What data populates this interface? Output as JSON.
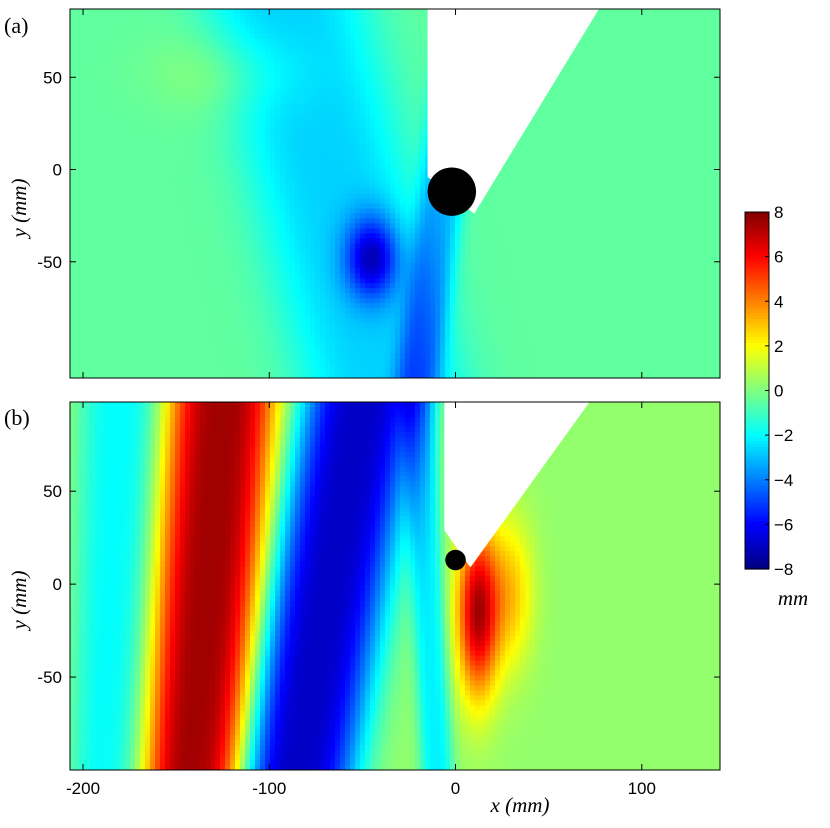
{
  "colors": {
    "background": "#ffffff",
    "wedge": "#ffffff",
    "cylinder": "#000000",
    "axis": "#000000",
    "colormap": "jet"
  },
  "chart_data": [
    {
      "type": "heatmap",
      "panel": "(a)",
      "ylabel": "y (mm)",
      "xlabel": "",
      "xlim": [
        -207,
        142
      ],
      "ylim": [
        -113,
        87
      ],
      "xticks": [
        -200,
        -100,
        0,
        100
      ],
      "xtick_labels_shown": false,
      "yticks": [
        50,
        0,
        -50
      ],
      "ytick_labels": [
        "50",
        "0",
        "-50"
      ],
      "field_description": "elevation nearly uniform ~0 mm; slight depression (~-3 mm) below cylinder",
      "features": [
        {
          "kind": "blob",
          "x": -45,
          "y": -48,
          "rx": 14,
          "ry": 22,
          "value": -4.5
        },
        {
          "kind": "blob",
          "x": -120,
          "y": 52,
          "rx": 40,
          "ry": 22,
          "value": 0.8
        },
        {
          "kind": "band",
          "x_top": -90,
          "x_bottom": -40,
          "width": 90,
          "value": -2.2
        },
        {
          "kind": "band",
          "x_top": 5,
          "x_bottom": -20,
          "width": 25,
          "value": -2.5
        }
      ],
      "base_value": -0.5,
      "cylinder": {
        "x": -2,
        "y": -12,
        "r": 13
      },
      "wedge": {
        "vertex_x": 10,
        "vertex_y": -24,
        "left_x": -15,
        "right_top_x": 77
      }
    },
    {
      "type": "heatmap",
      "panel": "(b)",
      "ylabel": "y (mm)",
      "xlabel": "x (mm)",
      "xlim": [
        -207,
        142
      ],
      "ylim": [
        -100,
        98
      ],
      "xticks": [
        -200,
        -100,
        0,
        100
      ],
      "xtick_labels": [
        "-200",
        "-100",
        "0",
        "100"
      ],
      "yticks": [
        50,
        0,
        -50
      ],
      "ytick_labels": [
        "50",
        "0",
        "-50"
      ],
      "field_description": "strong crest (~+7 mm) at x~-130 and trough (~-7 mm) at x~-60 to -40, both curved",
      "features": [
        {
          "kind": "band",
          "x_top": -125,
          "x_bottom": -140,
          "width": 58,
          "value": 7.2
        },
        {
          "kind": "band",
          "x_top": -50,
          "x_bottom": -85,
          "width": 66,
          "value": -7.2
        },
        {
          "kind": "band",
          "x_top": -180,
          "x_bottom": -185,
          "width": 45,
          "value": -2.3
        },
        {
          "kind": "band",
          "x_top": -20,
          "x_bottom": -10,
          "width": 18,
          "value": -2.5
        },
        {
          "kind": "blob",
          "x": 12,
          "y": -15,
          "rx": 11,
          "ry": 45,
          "value": 7.0
        },
        {
          "kind": "blob",
          "x": 30,
          "y": -5,
          "rx": 12,
          "ry": 40,
          "value": 2.5
        }
      ],
      "base_value": 0.3,
      "cylinder": {
        "x": 0,
        "y": 13,
        "r": 5.5
      },
      "wedge": {
        "vertex_x": 8,
        "vertex_y": 9,
        "left_x": -6,
        "right_top_x": 72
      }
    }
  ],
  "colorbar": {
    "min": -8,
    "max": 8,
    "ticks": [
      8,
      6,
      4,
      2,
      0,
      -2,
      -4,
      -6,
      -8
    ],
    "tick_labels": [
      "8",
      "6",
      "4",
      "2",
      "0",
      "−2",
      "−4",
      "−6",
      "−8"
    ],
    "unit_label": "mm"
  },
  "labels": {
    "panel_a": "(a)",
    "panel_b": "(b)",
    "ylabel_a": "y (mm)",
    "ylabel_b": "y (mm)",
    "xlabel": "x (mm)"
  }
}
